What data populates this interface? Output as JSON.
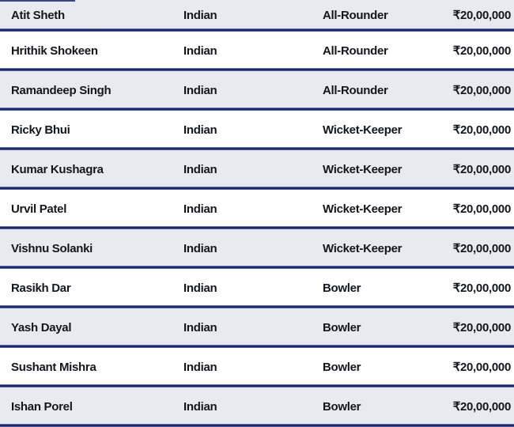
{
  "table": {
    "rows": [
      {
        "name": "Atit Sheth",
        "nationality": "Indian",
        "role": "All-Rounder",
        "price": "₹20,00,000"
      },
      {
        "name": "Hrithik Shokeen",
        "nationality": "Indian",
        "role": "All-Rounder",
        "price": "₹20,00,000"
      },
      {
        "name": "Ramandeep Singh",
        "nationality": "Indian",
        "role": "All-Rounder",
        "price": "₹20,00,000"
      },
      {
        "name": "Ricky Bhui",
        "nationality": "Indian",
        "role": "Wicket-Keeper",
        "price": "₹20,00,000"
      },
      {
        "name": "Kumar Kushagra",
        "nationality": "Indian",
        "role": "Wicket-Keeper",
        "price": "₹20,00,000"
      },
      {
        "name": "Urvil Patel",
        "nationality": "Indian",
        "role": "Wicket-Keeper",
        "price": "₹20,00,000"
      },
      {
        "name": "Vishnu Solanki",
        "nationality": "Indian",
        "role": "Wicket-Keeper",
        "price": "₹20,00,000"
      },
      {
        "name": "Rasikh Dar",
        "nationality": "Indian",
        "role": "Bowler",
        "price": "₹20,00,000"
      },
      {
        "name": "Yash Dayal",
        "nationality": "Indian",
        "role": "Bowler",
        "price": "₹20,00,000"
      },
      {
        "name": "Sushant Mishra",
        "nationality": "Indian",
        "role": "Bowler",
        "price": "₹20,00,000"
      },
      {
        "name": "Ishan Porel",
        "nationality": "Indian",
        "role": "Bowler",
        "price": "₹20,00,000"
      }
    ]
  },
  "colors": {
    "row_bg": "#ffffff",
    "row_alt_bg": "#e8e9f1",
    "divider": "#1b2a6b",
    "divider_edge": "#9da9d2",
    "text": "#15151e"
  }
}
